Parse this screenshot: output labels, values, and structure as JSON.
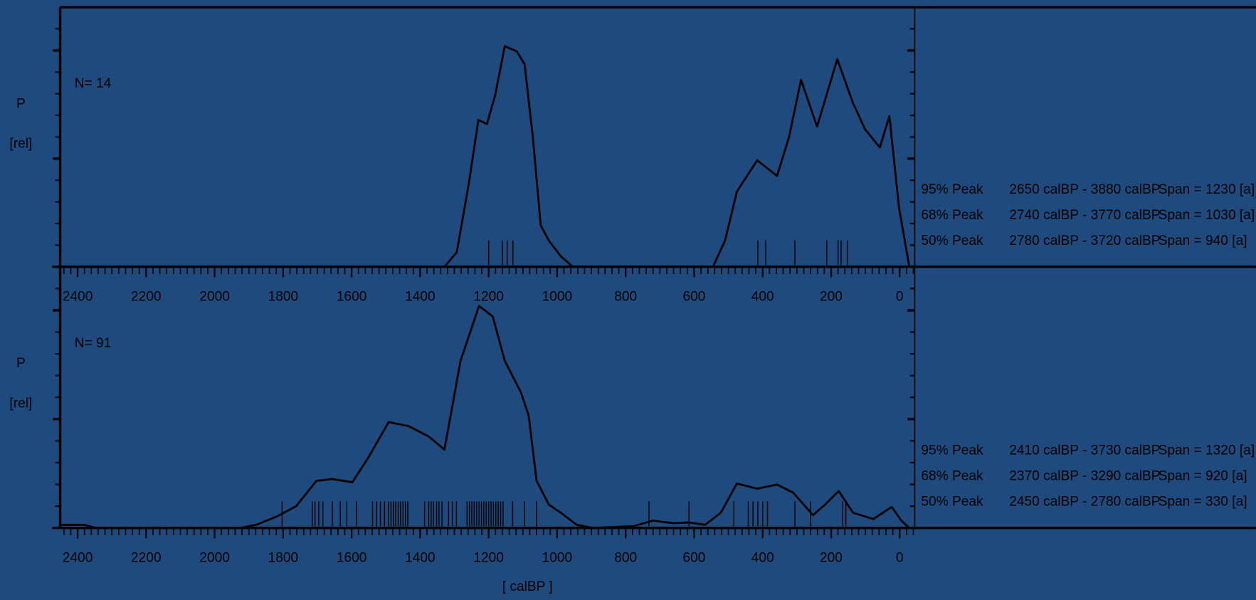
{
  "chart_data": [
    {
      "type": "line",
      "color": "#000000",
      "ylabel": [
        "P",
        "[rel]"
      ],
      "annotation": "N= 14",
      "xlim": [
        2451,
        -44
      ],
      "ylim": [
        0,
        1
      ],
      "xticks": [
        2400,
        2200,
        2000,
        1800,
        1600,
        1400,
        1200,
        1000,
        800,
        600,
        400,
        200,
        0
      ],
      "x": [
        1329,
        1293,
        1258,
        1230,
        1205,
        1181,
        1153,
        1118,
        1095,
        1071,
        1048,
        1024,
        989,
        954,
        545,
        510,
        475,
        416,
        358,
        323,
        288,
        241,
        182,
        136,
        101,
        58,
        30,
        2,
        -28
      ],
      "values": [
        0,
        0.056,
        0.32,
        0.565,
        0.55,
        0.66,
        0.85,
        0.83,
        0.78,
        0.5,
        0.16,
        0.1,
        0.04,
        0,
        0,
        0.1,
        0.29,
        0.41,
        0.35,
        0.5,
        0.72,
        0.54,
        0.8,
        0.63,
        0.53,
        0.46,
        0.58,
        0.23,
        0
      ],
      "rug": [
        1200,
        1160,
        1146,
        1129,
        414,
        391,
        306,
        213,
        180,
        171,
        152
      ],
      "stats": [
        [
          "95% Peak",
          "2650 calBP - 3880 calBP",
          "Span = 1230 [a]"
        ],
        [
          "68% Peak",
          "2740 calBP - 3770 calBP",
          "Span = 1030 [a]"
        ],
        [
          "50% Peak",
          "2780 calBP - 3720 calBP",
          "Span = 940 [a]"
        ]
      ]
    },
    {
      "type": "line",
      "color": "#000000",
      "ylabel": [
        "P",
        "[rel]"
      ],
      "annotation": "N= 91",
      "xlabel": "[ calBP ]",
      "xlim": [
        2451,
        -44
      ],
      "ylim": [
        0,
        1
      ],
      "xticks": [
        2400,
        2200,
        2000,
        1800,
        1600,
        1400,
        1200,
        1000,
        800,
        600,
        400,
        200,
        0
      ],
      "x": [
        2451,
        2381,
        2346,
        1925,
        1878,
        1820,
        1762,
        1703,
        1657,
        1598,
        1551,
        1492,
        1434,
        1375,
        1329,
        1282,
        1228,
        1188,
        1153,
        1106,
        1083,
        1060,
        1024,
        989,
        943,
        896,
        779,
        720,
        662,
        615,
        568,
        522,
        475,
        416,
        358,
        311,
        253,
        218,
        178,
        136,
        77,
        23,
        -5,
        -28
      ],
      "values": [
        0.012,
        0.012,
        0,
        0,
        0.012,
        0.043,
        0.083,
        0.18,
        0.187,
        0.175,
        0.27,
        0.405,
        0.39,
        0.35,
        0.3,
        0.64,
        0.85,
        0.81,
        0.64,
        0.52,
        0.43,
        0.18,
        0.089,
        0.058,
        0.012,
        0,
        0.006,
        0.028,
        0.018,
        0.021,
        0.012,
        0.058,
        0.17,
        0.15,
        0.166,
        0.135,
        0.049,
        0.089,
        0.141,
        0.058,
        0.034,
        0.08,
        0.028,
        0
      ],
      "rug": [
        1803,
        1715,
        1707,
        1696,
        1684,
        1656,
        1633,
        1614,
        1586,
        1539,
        1527,
        1516,
        1504,
        1492,
        1485,
        1478,
        1471,
        1464,
        1457,
        1450,
        1443,
        1436,
        1387,
        1375,
        1368,
        1361,
        1352,
        1345,
        1336,
        1317,
        1306,
        1294,
        1263,
        1256,
        1249,
        1242,
        1235,
        1228,
        1221,
        1214,
        1207,
        1200,
        1193,
        1186,
        1179,
        1172,
        1165,
        1158,
        1130,
        1095,
        1060,
        732,
        615,
        484,
        442,
        428,
        414,
        400,
        386,
        306,
        260,
        166,
        157
      ],
      "stats": [
        [
          "95% Peak",
          "2410 calBP - 3730 calBP",
          "Span = 1320 [a]"
        ],
        [
          "68% Peak",
          "2370 calBP - 3290 calBP",
          "Span = 920 [a]"
        ],
        [
          "50% Peak",
          "2450 calBP - 2780 calBP",
          "Span = 330 [a]"
        ]
      ]
    }
  ]
}
